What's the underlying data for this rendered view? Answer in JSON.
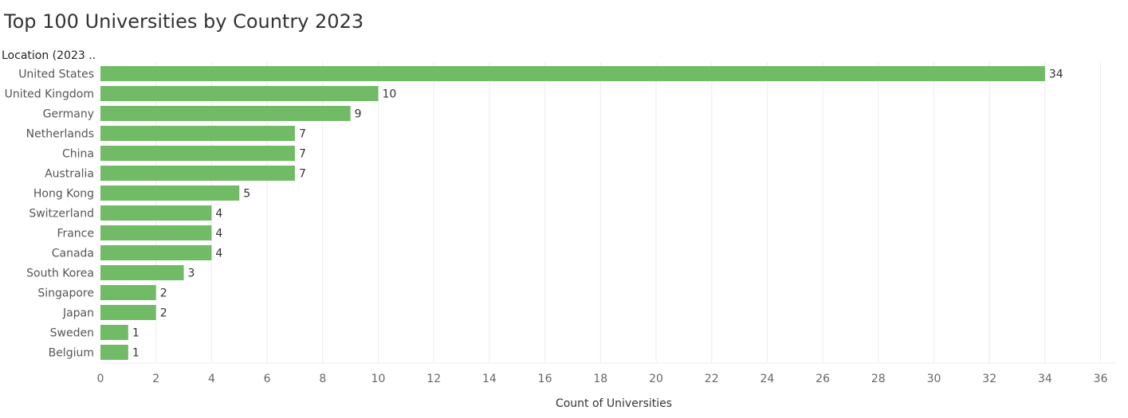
{
  "chart_data": {
    "type": "bar",
    "orientation": "horizontal",
    "title": "Top 100 Universities by Country 2023",
    "ylabel": "Location (2023 ..",
    "xlabel": "Count of Universities",
    "categories": [
      "United States",
      "United Kingdom",
      "Germany",
      "Netherlands",
      "China",
      "Australia",
      "Hong Kong",
      "Switzerland",
      "France",
      "Canada",
      "South Korea",
      "Singapore",
      "Japan",
      "Sweden",
      "Belgium"
    ],
    "values": [
      34,
      10,
      9,
      7,
      7,
      7,
      5,
      4,
      4,
      4,
      3,
      2,
      2,
      1,
      1
    ],
    "xlim": [
      0,
      36
    ],
    "xticks": [
      0,
      2,
      4,
      6,
      8,
      10,
      12,
      14,
      16,
      18,
      20,
      22,
      24,
      26,
      28,
      30,
      32,
      34,
      36
    ],
    "grid": true,
    "colors": {
      "bar": "#72bb66"
    }
  }
}
